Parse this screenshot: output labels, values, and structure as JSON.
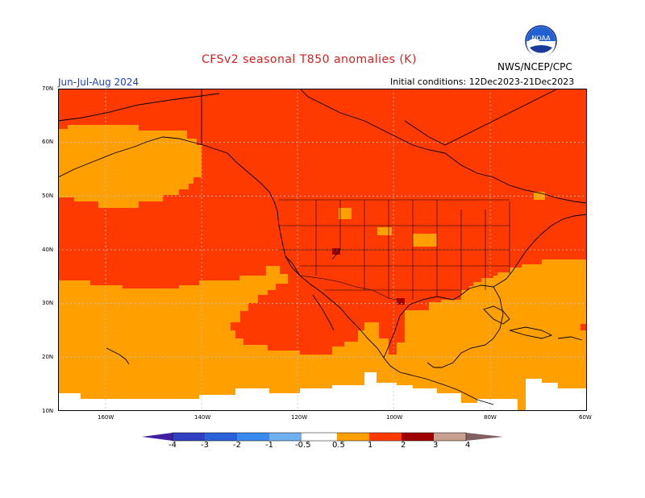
{
  "map": {
    "title": "CFSv2 seasonal T850 anomalies (K)",
    "period": "Jun-Jul-Aug 2024",
    "initial_conditions": "Initial conditions: 12Dec2023-21Dec2023",
    "agency": "NWS/NCEP/CPC",
    "logo_text": "NOAA",
    "lat_labels": [
      "70N",
      "60N",
      "50N",
      "40N",
      "30N",
      "20N",
      "10N"
    ],
    "lon_labels": [
      "160W",
      "140W",
      "120W",
      "100W",
      "80W",
      "60W"
    ],
    "colorbar_labels": [
      "-4",
      "-3",
      "-2",
      "-1",
      "-0.5",
      "0.5",
      "1",
      "2",
      "3",
      "4"
    ],
    "colors": {
      "anom_05_1": "#ffa000",
      "anom_1_2": "#ff3a00",
      "anom_2_3": "#a00000",
      "anom_3_4": "#c8a090",
      "anom_gt4": "#806060",
      "neg_lt4": "#4020a0",
      "neg_4_3": "#3040c0",
      "neg_3_2": "#2a60d8",
      "neg_2_1": "#3a8aee",
      "neg_1_05": "#70b0f0",
      "title_red": "#d62020",
      "period_blue": "#2040c0"
    }
  }
}
